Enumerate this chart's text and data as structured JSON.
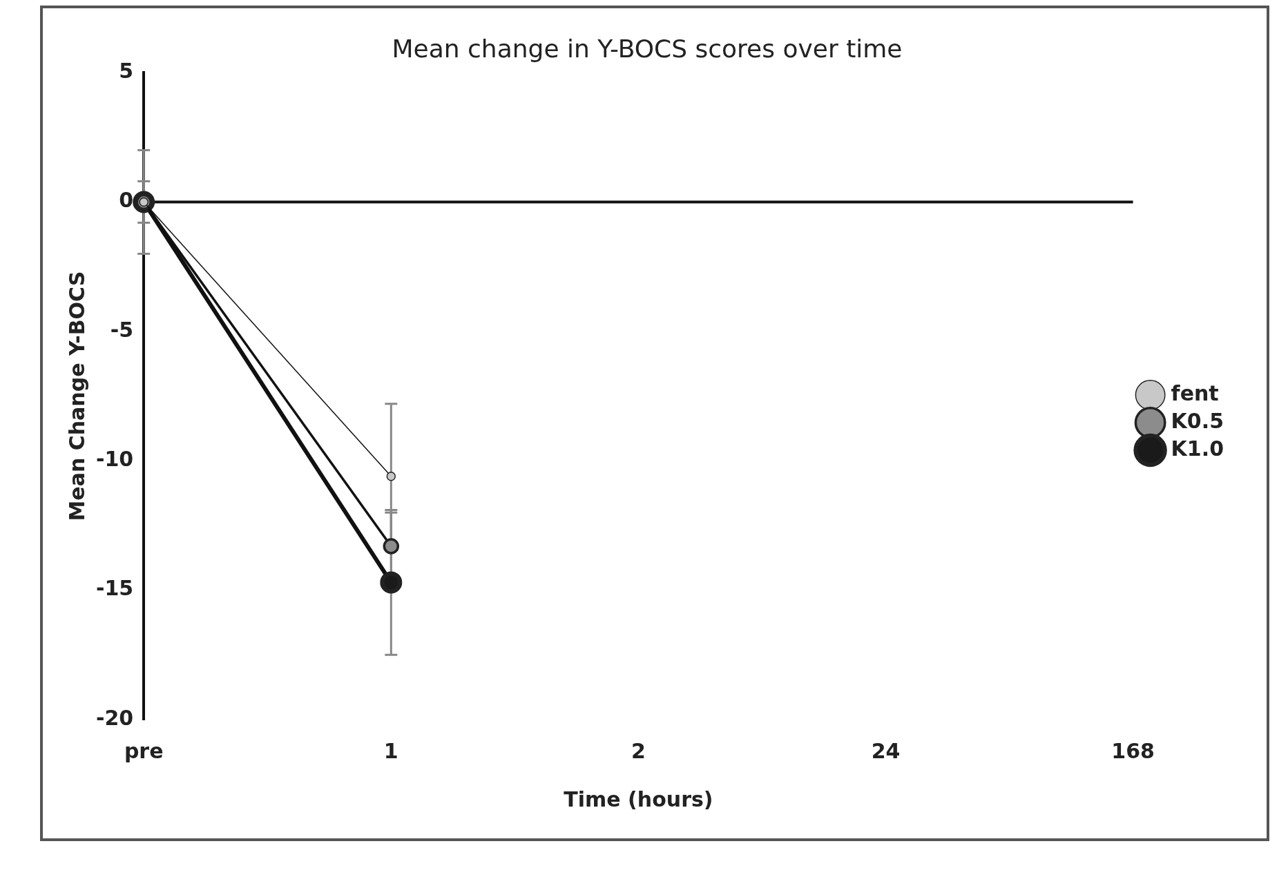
{
  "chart_data": {
    "type": "line",
    "title": "Mean change in Y-BOCS scores over time",
    "xlabel": "Time (hours)",
    "ylabel": "Mean Change Y-BOCS",
    "categories": [
      "pre",
      "1",
      "2",
      "24",
      "168"
    ],
    "series": [
      {
        "name": "fent",
        "color": "#c8c8c8",
        "values": [
          0,
          -10.6,
          null,
          null,
          null
        ],
        "errors": [
          2,
          2.8,
          null,
          null,
          null
        ]
      },
      {
        "name": "K0.5",
        "color": "#8c8c8c",
        "values": [
          0,
          -13.3,
          null,
          null,
          null
        ],
        "errors": [
          0.8,
          1.3,
          null,
          null,
          null
        ]
      },
      {
        "name": "K1.0",
        "color": "#1a1a1a",
        "values": [
          0,
          -14.7,
          null,
          null,
          null
        ],
        "errors": [
          null,
          2.8,
          null,
          null,
          null
        ]
      }
    ],
    "ylim": [
      -20,
      5
    ],
    "yticks": [
      -20,
      -15,
      -10,
      -5,
      0,
      5
    ],
    "grid": false,
    "legend": "right",
    "marker": "circle",
    "ref_lines": [
      {
        "axis": "y",
        "value": 0
      }
    ]
  }
}
